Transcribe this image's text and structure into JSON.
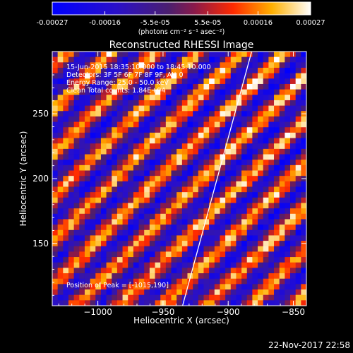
{
  "colorbar": {
    "tick_labels": [
      "-0.00027",
      "-0.00016",
      "-5.5e-05",
      "5.5e-05",
      "0.00016",
      "0.00027"
    ],
    "tick_values": [
      -0.00027,
      -0.00016,
      -5.5e-05,
      5.5e-05,
      0.00016,
      0.00027
    ],
    "unit_label": "(photons cm⁻² s⁻¹ asec⁻²)",
    "range": [
      -0.00027,
      0.00027
    ]
  },
  "footer_timestamp": "22-Nov-2017 22:58",
  "chart_data": {
    "type": "heatmap",
    "title": "Reconstructed RHESSI Image",
    "xlabel": "Heliocentric X (arcsec)",
    "ylabel": "Heliocentric Y (arcsec)",
    "xlim": [
      -1035,
      -840
    ],
    "ylim": [
      102,
      298
    ],
    "x_ticks": [
      -1000,
      -950,
      -900,
      -850
    ],
    "x_tick_labels": [
      "−1000",
      "−950",
      "−900",
      "−850"
    ],
    "y_ticks": [
      150,
      200,
      250
    ],
    "y_tick_labels": [
      "150",
      "200",
      "250"
    ],
    "annotations": [
      "15-Jun-2015 18:35:10.000 to 18:45:10.000",
      "Detectors: 3F 5F 6F 7F 8F 9F, Att 0",
      "Energy Range: 25.0 - 50.0 keV",
      "Clean    Total counts: 1.84E+04"
    ],
    "peak_label": "Position of Peak = [-1015,190]",
    "peak_position": [
      -1015,
      190
    ],
    "limb_line": [
      [
        -935,
        102
      ],
      [
        -882,
        298
      ]
    ],
    "pixel_grid": [
      47,
      47
    ],
    "pattern": "diagonal stripes running from upper-left to lower-right, brightest near upper-left",
    "value_range": [
      -0.00027,
      0.00027
    ],
    "colors": {
      "negative": "#0000ff",
      "zero": "#4b1f6f",
      "positive_mid": "#ff2a00",
      "positive_high": "#ffffff",
      "limb_line": "#ffffff"
    }
  }
}
